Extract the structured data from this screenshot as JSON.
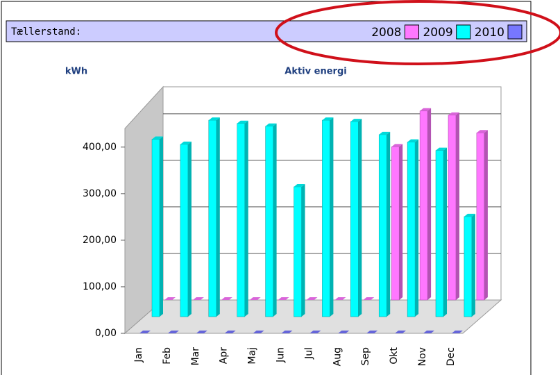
{
  "header": {
    "label": "Tællerstand:"
  },
  "chart_data": {
    "type": "bar3d",
    "title": "Aktiv energi",
    "y_label": "kWh",
    "categories": [
      "Jan",
      "Feb",
      "Mar",
      "Apr",
      "Maj",
      "Jun",
      "Jul",
      "Aug",
      "Sep",
      "Okt",
      "Nov",
      "Dec"
    ],
    "series": [
      {
        "name": "2008",
        "color": "#ff77ff",
        "values": [
          0,
          0,
          0,
          0,
          0,
          0,
          0,
          0,
          329,
          406,
          397,
          359
        ]
      },
      {
        "name": "2009",
        "color": "#00ffff",
        "values": [
          381,
          370,
          422,
          415,
          409,
          279,
          422,
          419,
          391,
          375,
          357,
          215
        ]
      },
      {
        "name": "2010",
        "color": "#7777ff",
        "values": [
          0,
          0,
          0,
          0,
          0,
          0,
          0,
          0,
          0,
          0,
          0,
          0
        ]
      }
    ],
    "ylim": [
      0,
      440
    ],
    "yticks": [
      {
        "value": 0,
        "label": "0,00"
      },
      {
        "value": 100,
        "label": "100,00"
      },
      {
        "value": 200,
        "label": "200,00"
      },
      {
        "value": 300,
        "label": "300,00"
      },
      {
        "value": 400,
        "label": "400,00"
      }
    ],
    "grid": true
  }
}
